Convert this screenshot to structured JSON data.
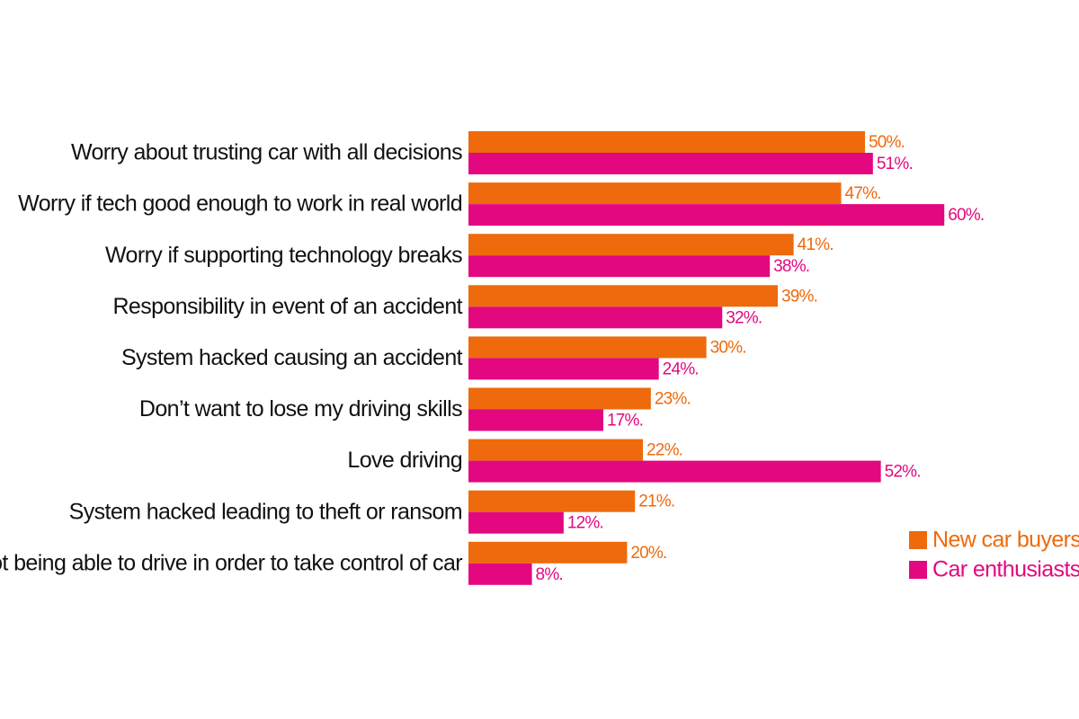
{
  "chart_data": {
    "type": "bar",
    "orientation": "horizontal",
    "categories": [
      "Worry about trusting car with all decisions",
      "Worry if tech good enough to work in real world",
      "Worry if supporting technology breaks",
      "Responsibility in event of an accident",
      "System hacked causing an accident",
      "Don’t want to lose my driving skills",
      "Love driving",
      "System hacked leading to theft or ransom",
      "Fear not being able to drive in order to take control of car"
    ],
    "series": [
      {
        "name": "New car buyers",
        "color": "#EE6A0C",
        "values": [
          50,
          47,
          41,
          39,
          30,
          23,
          22,
          21,
          20
        ],
        "labels": [
          "50%.",
          "47%.",
          "41%.",
          "39%.",
          "30%.",
          "23%.",
          "22%.",
          "21%.",
          "20%."
        ]
      },
      {
        "name": "Car enthusiasts",
        "color": "#E3087F",
        "values": [
          51,
          60,
          38,
          32,
          24,
          17,
          52,
          12,
          8
        ],
        "labels": [
          "51%.",
          "60%.",
          "38%.",
          "32%.",
          "24%.",
          "17%.",
          "52%.",
          "12%.",
          "8%."
        ]
      }
    ],
    "xlim": [
      0,
      100
    ],
    "grid": false,
    "legend_position": "bottom-right",
    "title": "",
    "xlabel": "",
    "ylabel": ""
  }
}
